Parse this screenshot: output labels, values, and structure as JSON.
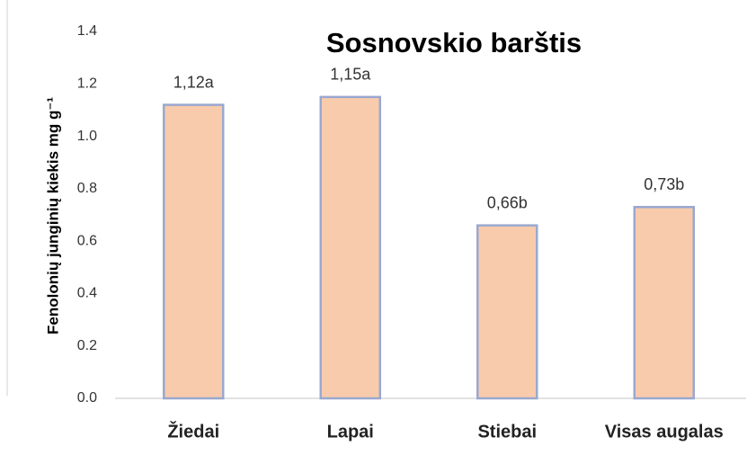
{
  "chart_data": {
    "type": "bar",
    "title": "Sosnovskio barštis",
    "y_label": "Fenolonių junginių kiekis mg g⁻¹",
    "categories": [
      "Žiedai",
      "Lapai",
      "Stiebai",
      "Visas augalas"
    ],
    "values": [
      1.12,
      1.15,
      0.66,
      0.73
    ],
    "value_labels": [
      "1,12a",
      "1,15a",
      "0,66b",
      "0,73b"
    ],
    "color": "#f8cbad",
    "ylim": [
      0,
      1.4
    ],
    "yticks": [
      {
        "value": 0,
        "label": "0.0"
      },
      0.2,
      0.4,
      0.6,
      0.8,
      {
        "value": 1,
        "label": "1.0"
      },
      1.2,
      1.4
    ],
    "grid": false
  }
}
